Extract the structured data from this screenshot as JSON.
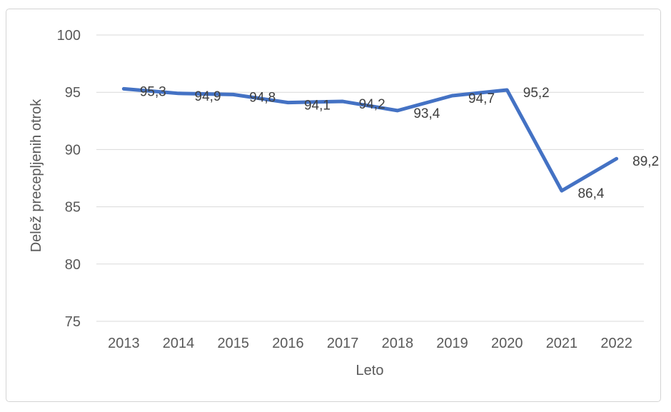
{
  "chart": {
    "line_color": "#4472C4",
    "grid_color": "#D9D9D9",
    "axis_text_color": "#595959",
    "label_text_color": "#404040"
  },
  "chart_data": {
    "type": "line",
    "title": "",
    "xlabel": "Leto",
    "ylabel": "Delež precepljenih otrok",
    "categories": [
      "2013",
      "2014",
      "2015",
      "2016",
      "2017",
      "2018",
      "2019",
      "2020",
      "2021",
      "2022"
    ],
    "series": [
      {
        "name": "Delež precepljenih otrok",
        "values": [
          95.3,
          94.9,
          94.8,
          94.1,
          94.2,
          93.4,
          94.7,
          95.2,
          86.4,
          89.2
        ]
      }
    ],
    "data_labels": [
      "95,3",
      "94,9",
      "94,8",
      "94,1",
      "94,2",
      "93,4",
      "94,7",
      "95,2",
      "86,4",
      "89,2"
    ],
    "ylim": [
      75,
      100
    ],
    "yticks": [
      100,
      95,
      90,
      85,
      80,
      75
    ],
    "grid": true,
    "legend": false,
    "data_label_position": "right"
  }
}
